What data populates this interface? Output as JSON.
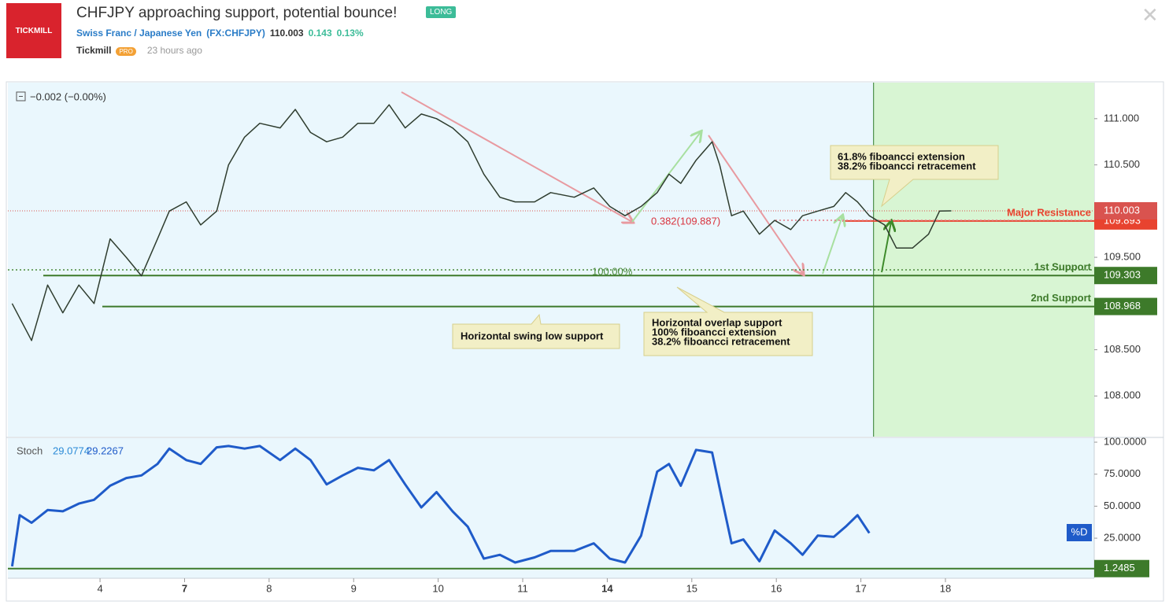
{
  "header": {
    "logo": "TICKMILL",
    "title": "CHFJPY approaching support, potential bounce!",
    "badge": "LONG",
    "symbol": "Swiss Franc / Japanese Yen",
    "ticker": "(FX:CHFJPY)",
    "price": "110.003",
    "change": "0.143",
    "change_pct": "0.13%",
    "author": "Tickmill",
    "author_badge": "PRO",
    "time": "23 hours ago"
  },
  "chart_data": [
    {
      "type": "line",
      "legend": "−0.002 (−0.00%)",
      "series": [
        {
          "color": "#2f3d2f",
          "x": [
            -0.04,
            0.19,
            0.38,
            0.56,
            0.75,
            0.93,
            1.12,
            1.31,
            1.49,
            1.68,
            1.82,
            2.02,
            2.19,
            2.38,
            2.52,
            2.71,
            2.89,
            3.13,
            3.31,
            3.49,
            3.68,
            3.87,
            4.05,
            4.24,
            4.42,
            4.61,
            4.8,
            4.98,
            5.17,
            5.35,
            5.54,
            5.73,
            5.91,
            6.14,
            6.33,
            6.61,
            6.84,
            7.03,
            7.21,
            7.4,
            7.59,
            7.73,
            7.87,
            8.05,
            8.24,
            8.33,
            8.47,
            8.61,
            8.8,
            8.98,
            9.17,
            9.31,
            9.49,
            9.68,
            9.82,
            9.96,
            10.1,
            10.28,
            10.42,
            10.61,
            10.8,
            10.93,
            11.07
          ],
          "values": [
            109.0,
            108.6,
            109.2,
            108.9,
            109.2,
            109.0,
            109.7,
            109.5,
            109.3,
            109.7,
            110.0,
            110.1,
            109.85,
            110.0,
            110.5,
            110.8,
            110.95,
            110.9,
            111.1,
            110.85,
            110.75,
            110.8,
            110.95,
            110.95,
            111.15,
            110.9,
            111.05,
            111.0,
            110.9,
            110.75,
            110.4,
            110.15,
            110.1,
            110.1,
            110.2,
            110.15,
            110.25,
            110.05,
            109.95,
            110.05,
            110.2,
            110.4,
            110.3,
            110.55,
            110.75,
            110.5,
            109.95,
            110.0,
            109.75,
            109.9,
            109.8,
            109.95,
            110.0,
            110.05,
            110.2,
            110.1,
            109.95,
            109.85,
            109.6,
            109.6,
            109.75,
            110.0,
            110.003
          ]
        }
      ],
      "xlim": [
        -0.09,
        12.76
      ],
      "xticks": [
        {
          "value": 1,
          "label": "4"
        },
        {
          "value": 2,
          "label": "7"
        },
        {
          "value": 3,
          "label": "8"
        },
        {
          "value": 4,
          "label": "9"
        },
        {
          "value": 5,
          "label": "10"
        },
        {
          "value": 6,
          "label": "11"
        },
        {
          "value": 7,
          "label": "14"
        },
        {
          "value": 8,
          "label": "15"
        },
        {
          "value": 9,
          "label": "16"
        },
        {
          "value": 10,
          "label": "17"
        },
        {
          "value": 11,
          "label": "18"
        }
      ],
      "ylim": [
        107.56,
        111.39
      ],
      "yticks": [
        {
          "value": 108,
          "label": "108.000"
        },
        {
          "value": 108.5,
          "label": "108.500"
        },
        {
          "value": 109.5,
          "label": "109.500"
        },
        {
          "value": 110.5,
          "label": "110.500"
        },
        {
          "value": 111,
          "label": "111.000"
        }
      ],
      "last_price": 110.003,
      "levels": [
        {
          "name": "Major Resistance",
          "value": 109.893,
          "color": "#e8432f"
        },
        {
          "name": "1st Support",
          "value": 109.303,
          "color": "#3d7a2a"
        },
        {
          "name": "2nd Support",
          "value": 108.968,
          "color": "#3d7a2a"
        }
      ],
      "fib_labels": [
        "0.382(109.887)",
        "100.00%"
      ],
      "zone_start": 10.15,
      "annotations": [
        {
          "lines": [
            "61.8% fiboancci extension",
            "38.2% fiboancci retracement"
          ]
        },
        {
          "lines": [
            "Horizontal swing low support"
          ]
        },
        {
          "lines": [
            "Horizontal overlap support",
            "100% fiboancci extension",
            "38.2% fiboancci retracement"
          ]
        }
      ]
    },
    {
      "type": "line",
      "title": "Stoch",
      "legend_values": [
        29.0774,
        29.2267
      ],
      "series": [
        {
          "name": "%D",
          "color": "#1f5bc9",
          "x": [
            -0.04,
            0.05,
            0.19,
            0.38,
            0.56,
            0.75,
            0.93,
            1.12,
            1.31,
            1.49,
            1.68,
            1.82,
            2.02,
            2.19,
            2.38,
            2.52,
            2.71,
            2.89,
            3.13,
            3.31,
            3.49,
            3.68,
            3.87,
            4.05,
            4.24,
            4.42,
            4.61,
            4.8,
            4.98,
            5.17,
            5.35,
            5.54,
            5.73,
            5.91,
            6.14,
            6.33,
            6.61,
            6.84,
            7.03,
            7.21,
            7.4,
            7.59,
            7.73,
            7.87,
            8.05,
            8.24,
            8.33,
            8.47,
            8.61,
            8.8,
            8.98,
            9.17,
            9.31,
            9.49,
            9.68,
            9.82,
            9.96,
            10.1
          ],
          "values": [
            3,
            43,
            37,
            47,
            46,
            52,
            55,
            66,
            72,
            74,
            83,
            95,
            86,
            83,
            96,
            97,
            95,
            97,
            86,
            95,
            86,
            67,
            74,
            80,
            78,
            86,
            67,
            49,
            61,
            46,
            34,
            9,
            12,
            6,
            10,
            15,
            15,
            21,
            9,
            6,
            27,
            77,
            83,
            66,
            94,
            92,
            64,
            21,
            24,
            7,
            31,
            21,
            12,
            27,
            26,
            34,
            43,
            29
          ]
        }
      ],
      "level": 1.2485,
      "ylim": [
        -6.3,
        103.1
      ],
      "yticks": [
        {
          "value": 25,
          "label": "25.0000"
        },
        {
          "value": 50,
          "label": "50.0000"
        },
        {
          "value": 75,
          "label": "75.0000"
        },
        {
          "value": 100,
          "label": "100.0000"
        }
      ]
    }
  ]
}
